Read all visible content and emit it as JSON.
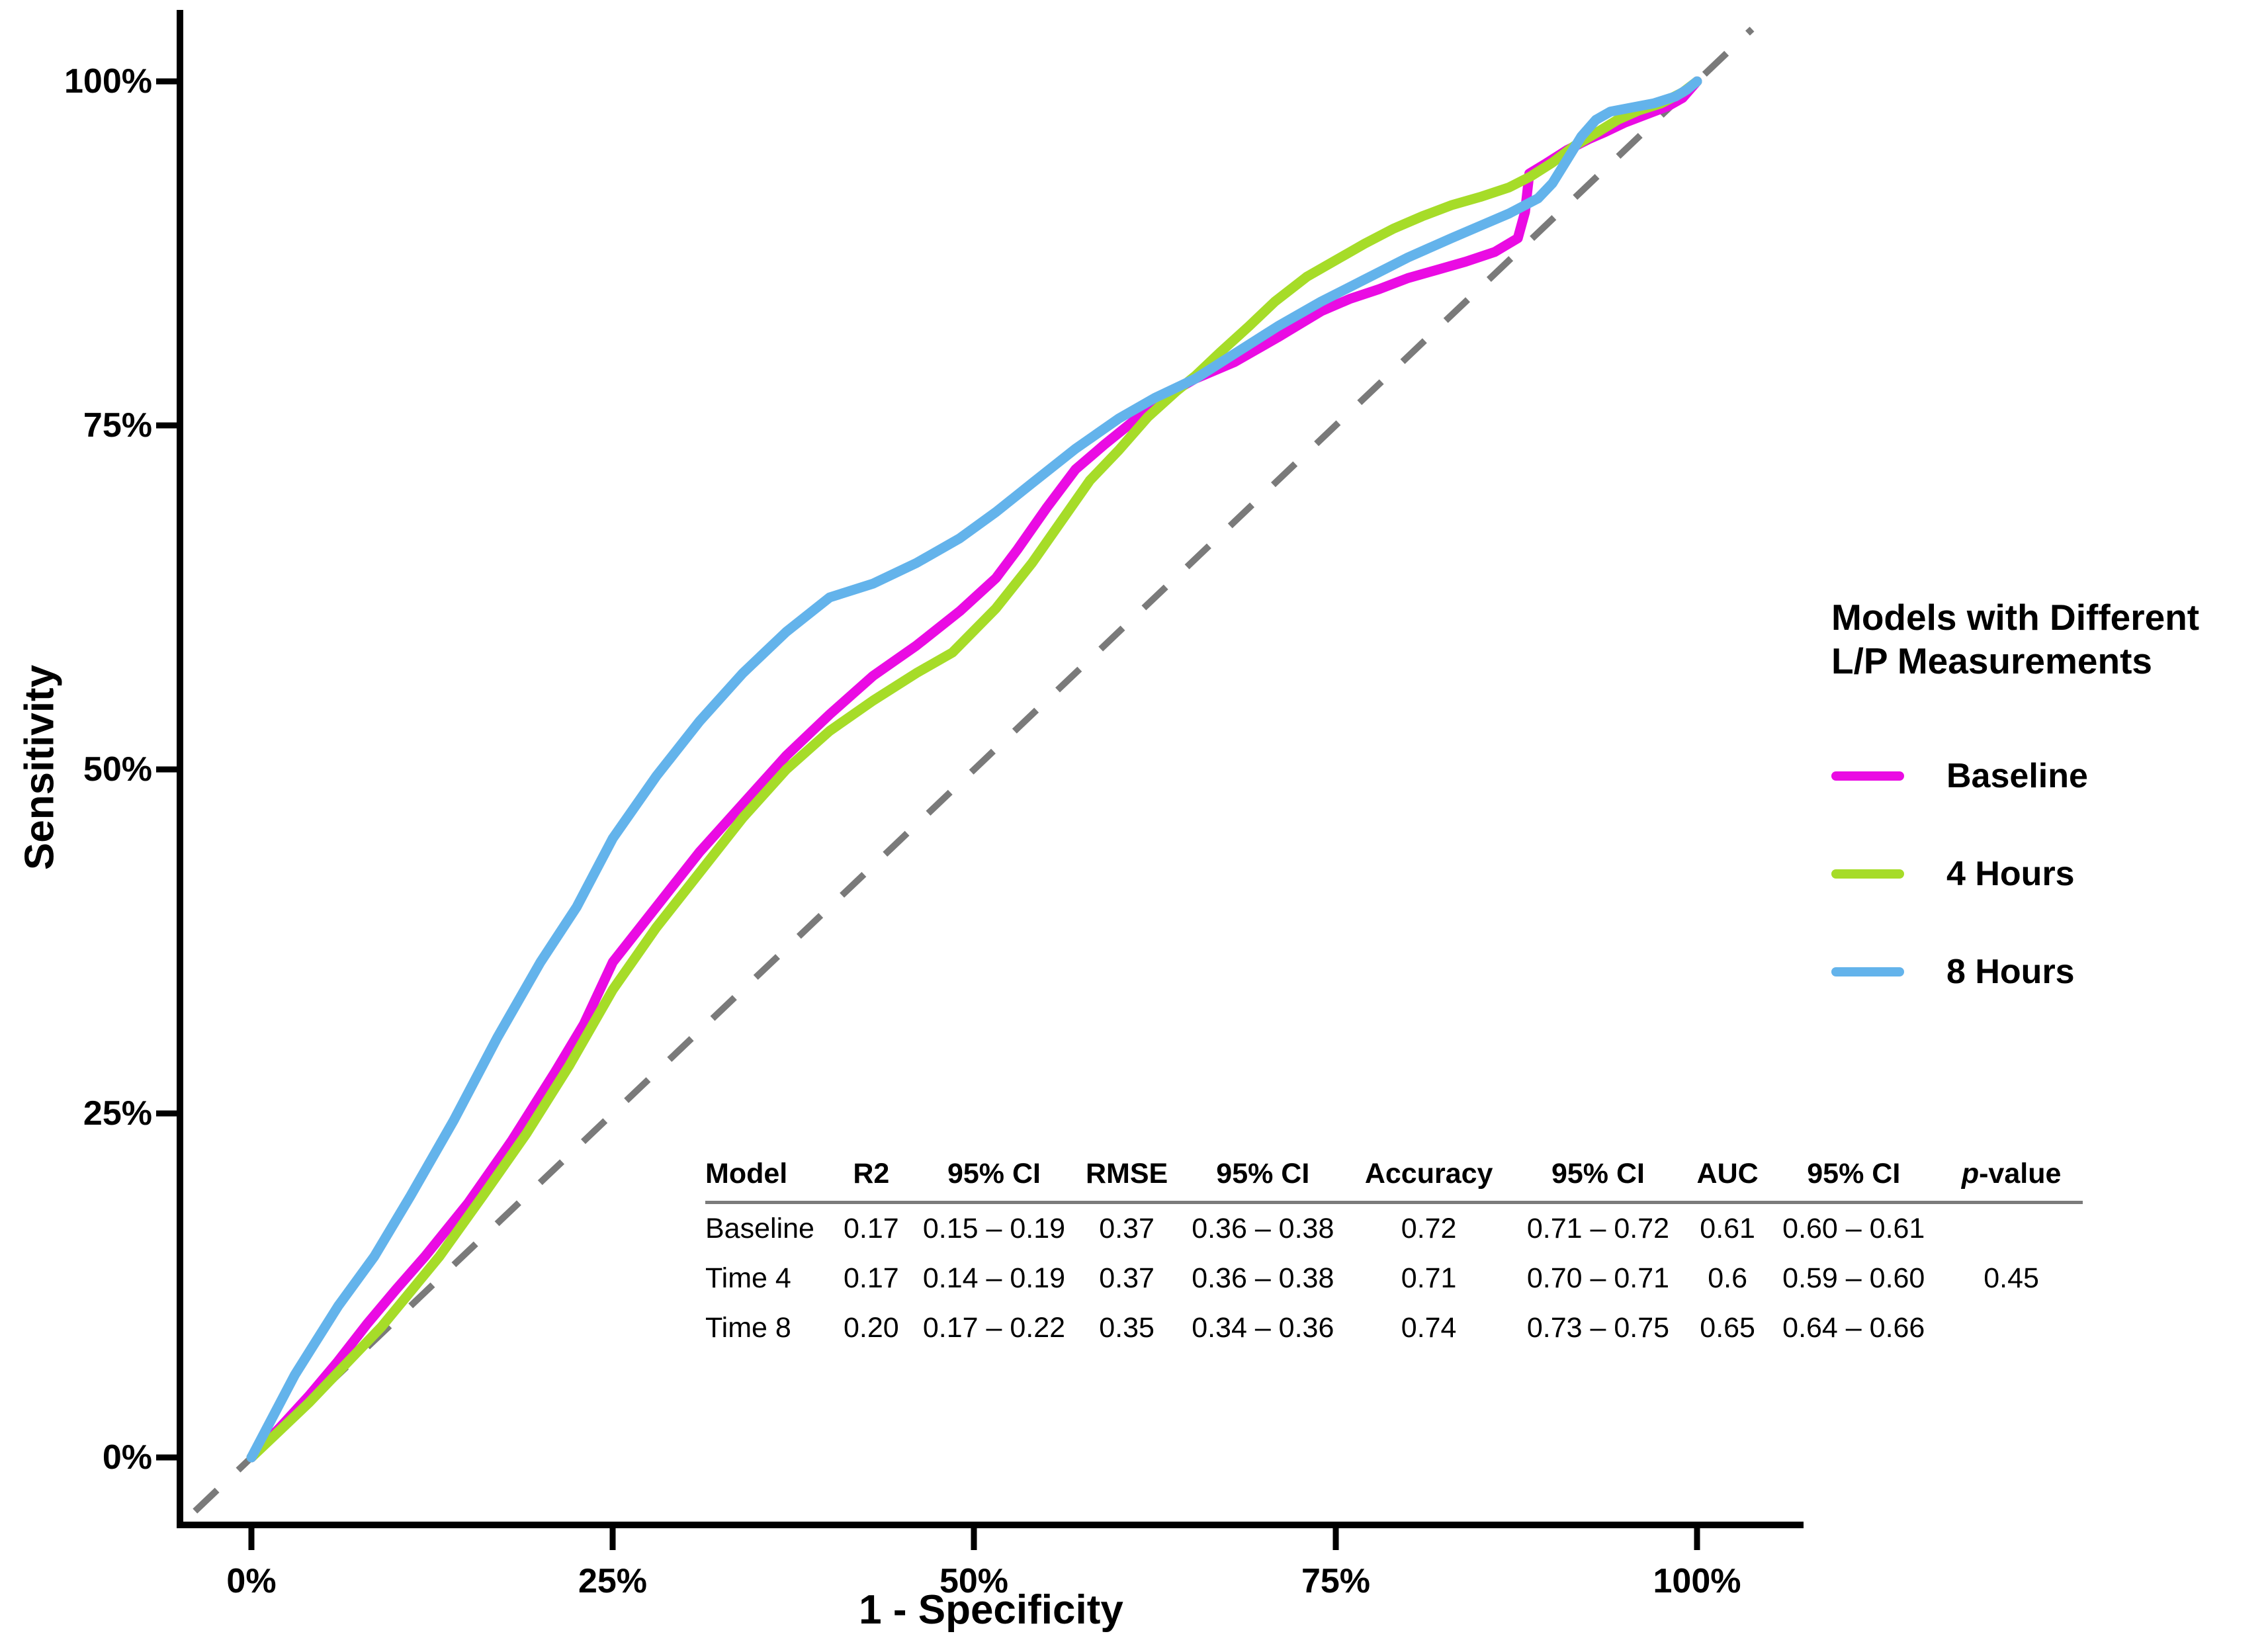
{
  "axes": {
    "x": {
      "title": "1 - Specificity",
      "ticks": [
        "0%",
        "25%",
        "50%",
        "75%",
        "100%"
      ]
    },
    "y": {
      "title": "Sensitivity",
      "ticks": [
        "0%",
        "25%",
        "50%",
        "75%",
        "100%"
      ]
    }
  },
  "legend": {
    "title_line1": "Models with Different",
    "title_line2": "L/P Measurements",
    "items": [
      {
        "label": "Baseline",
        "color": "#EA0BE3"
      },
      {
        "label": "4 Hours",
        "color": "#A6DC28"
      },
      {
        "label": "8 Hours",
        "color": "#63B3EB"
      }
    ]
  },
  "table": {
    "headers": [
      "Model",
      "R2",
      "95% CI",
      "RMSE",
      "95% CI",
      "Accuracy",
      "95% CI",
      "AUC",
      "95% CI",
      "p-value"
    ],
    "rows": [
      [
        "Baseline",
        "0.17",
        "0.15 – 0.19",
        "0.37",
        "0.36 – 0.38",
        "0.72",
        "0.71 – 0.72",
        "0.61",
        "0.60 – 0.61",
        ""
      ],
      [
        "Time 4",
        "0.17",
        "0.14 – 0.19",
        "0.37",
        "0.36 – 0.38",
        "0.71",
        "0.70 – 0.71",
        "0.6",
        "0.59 – 0.60",
        "0.45"
      ],
      [
        "Time 8",
        "0.20",
        "0.17 – 0.22",
        "0.35",
        "0.34 – 0.36",
        "0.74",
        "0.73 – 0.75",
        "0.65",
        "0.64 – 0.66",
        ""
      ]
    ]
  },
  "chart_data": {
    "type": "line",
    "subtype": "roc-curves",
    "xlabel": "1 - Specificity",
    "ylabel": "Sensitivity",
    "x_ticks": [
      "0%",
      "25%",
      "50%",
      "75%",
      "100%"
    ],
    "y_ticks": [
      "0%",
      "25%",
      "50%",
      "75%",
      "100%"
    ],
    "xlim_percent": [
      0,
      100
    ],
    "ylim_percent": [
      0,
      100
    ],
    "grid": false,
    "legend_position": "right",
    "reference_line": {
      "name": "chance-diagonal",
      "style": "dashed",
      "color": "#7a7a7a",
      "from_percent": [
        -3.9,
        -3.9
      ],
      "to_percent": [
        103.8,
        103.8
      ]
    },
    "series": [
      {
        "name": "Baseline",
        "color": "#EA0BE3",
        "auc": 0.61,
        "points_percent": [
          [
            0,
            0
          ],
          [
            2,
            2.2
          ],
          [
            4,
            4.5
          ],
          [
            6,
            7
          ],
          [
            8,
            9.7
          ],
          [
            10,
            12.2
          ],
          [
            12,
            14.6
          ],
          [
            15,
            18.5
          ],
          [
            18,
            23
          ],
          [
            21,
            28
          ],
          [
            23,
            31.5
          ],
          [
            25,
            36
          ],
          [
            28,
            40
          ],
          [
            31,
            44
          ],
          [
            34,
            47.5
          ],
          [
            37,
            51
          ],
          [
            40,
            54
          ],
          [
            43,
            56.8
          ],
          [
            46,
            59
          ],
          [
            49,
            61.5
          ],
          [
            51.5,
            63.9
          ],
          [
            53,
            66
          ],
          [
            55,
            69
          ],
          [
            57,
            71.8
          ],
          [
            59,
            73.6
          ],
          [
            61,
            75.3
          ],
          [
            63,
            77
          ],
          [
            65.3,
            78.4
          ],
          [
            68,
            79.6
          ],
          [
            71,
            81.4
          ],
          [
            74,
            83.3
          ],
          [
            76,
            84.2
          ],
          [
            78,
            84.9
          ],
          [
            80,
            85.7
          ],
          [
            82,
            86.3
          ],
          [
            84,
            86.9
          ],
          [
            86,
            87.6
          ],
          [
            87.6,
            88.6
          ],
          [
            88.1,
            90.5
          ],
          [
            88.4,
            93.3
          ],
          [
            89.5,
            94
          ],
          [
            91,
            95
          ],
          [
            92.5,
            95.8
          ],
          [
            93.6,
            96.3
          ],
          [
            95,
            97
          ],
          [
            96.5,
            97.6
          ],
          [
            98,
            98.2
          ],
          [
            99,
            98.8
          ],
          [
            100,
            100
          ]
        ]
      },
      {
        "name": "4 Hours",
        "color": "#A6DC28",
        "auc": 0.6,
        "points_percent": [
          [
            0,
            0
          ],
          [
            2,
            2
          ],
          [
            4,
            4
          ],
          [
            6,
            6.2
          ],
          [
            9,
            9.5
          ],
          [
            13,
            14.6
          ],
          [
            16,
            19
          ],
          [
            19,
            23.5
          ],
          [
            22,
            28.5
          ],
          [
            25,
            34
          ],
          [
            28,
            38.5
          ],
          [
            31,
            42.5
          ],
          [
            34,
            46.5
          ],
          [
            37,
            50
          ],
          [
            40,
            52.8
          ],
          [
            43,
            55
          ],
          [
            46,
            57
          ],
          [
            48.5,
            58.5
          ],
          [
            51.5,
            61.7
          ],
          [
            54,
            65
          ],
          [
            56,
            68
          ],
          [
            58,
            71
          ],
          [
            60,
            73.2
          ],
          [
            62,
            75.6
          ],
          [
            64,
            77.5
          ],
          [
            65.3,
            78.6
          ],
          [
            67,
            80.3
          ],
          [
            69,
            82.2
          ],
          [
            70.8,
            84
          ],
          [
            73,
            85.8
          ],
          [
            75,
            87
          ],
          [
            77,
            88.2
          ],
          [
            79,
            89.3
          ],
          [
            81,
            90.2
          ],
          [
            83,
            91
          ],
          [
            85,
            91.6
          ],
          [
            87,
            92.3
          ],
          [
            88.5,
            93.1
          ],
          [
            90,
            94.1
          ],
          [
            91.5,
            95.3
          ],
          [
            93.1,
            96.3
          ],
          [
            94.5,
            97.2
          ],
          [
            96,
            97.9
          ],
          [
            97.5,
            98.4
          ],
          [
            99,
            99.2
          ],
          [
            100,
            100
          ]
        ]
      },
      {
        "name": "8 Hours",
        "color": "#63B3EB",
        "auc": 0.65,
        "points_percent": [
          [
            0,
            0
          ],
          [
            1.5,
            3
          ],
          [
            3,
            6
          ],
          [
            4.5,
            8.5
          ],
          [
            6,
            11
          ],
          [
            8.5,
            14.6
          ],
          [
            11,
            19
          ],
          [
            14,
            24.5
          ],
          [
            17,
            30.5
          ],
          [
            20,
            36
          ],
          [
            22.5,
            40
          ],
          [
            25,
            45
          ],
          [
            28,
            49.5
          ],
          [
            31,
            53.5
          ],
          [
            34,
            57
          ],
          [
            37,
            60
          ],
          [
            40,
            62.5
          ],
          [
            43,
            63.5
          ],
          [
            46,
            65
          ],
          [
            49,
            66.8
          ],
          [
            51.5,
            68.7
          ],
          [
            54,
            70.8
          ],
          [
            57,
            73.3
          ],
          [
            60,
            75.5
          ],
          [
            62.5,
            77
          ],
          [
            65.3,
            78.4
          ],
          [
            68,
            80.2
          ],
          [
            71,
            82.2
          ],
          [
            74,
            84
          ],
          [
            77,
            85.6
          ],
          [
            80,
            87.2
          ],
          [
            83,
            88.6
          ],
          [
            85,
            89.5
          ],
          [
            87,
            90.4
          ],
          [
            89,
            91.5
          ],
          [
            90,
            92.6
          ],
          [
            91,
            94.3
          ],
          [
            92,
            96
          ],
          [
            93,
            97.2
          ],
          [
            94,
            97.8
          ],
          [
            95.5,
            98.1
          ],
          [
            97,
            98.4
          ],
          [
            98.5,
            98.9
          ],
          [
            99.3,
            99.4
          ],
          [
            100,
            100
          ]
        ]
      }
    ]
  }
}
